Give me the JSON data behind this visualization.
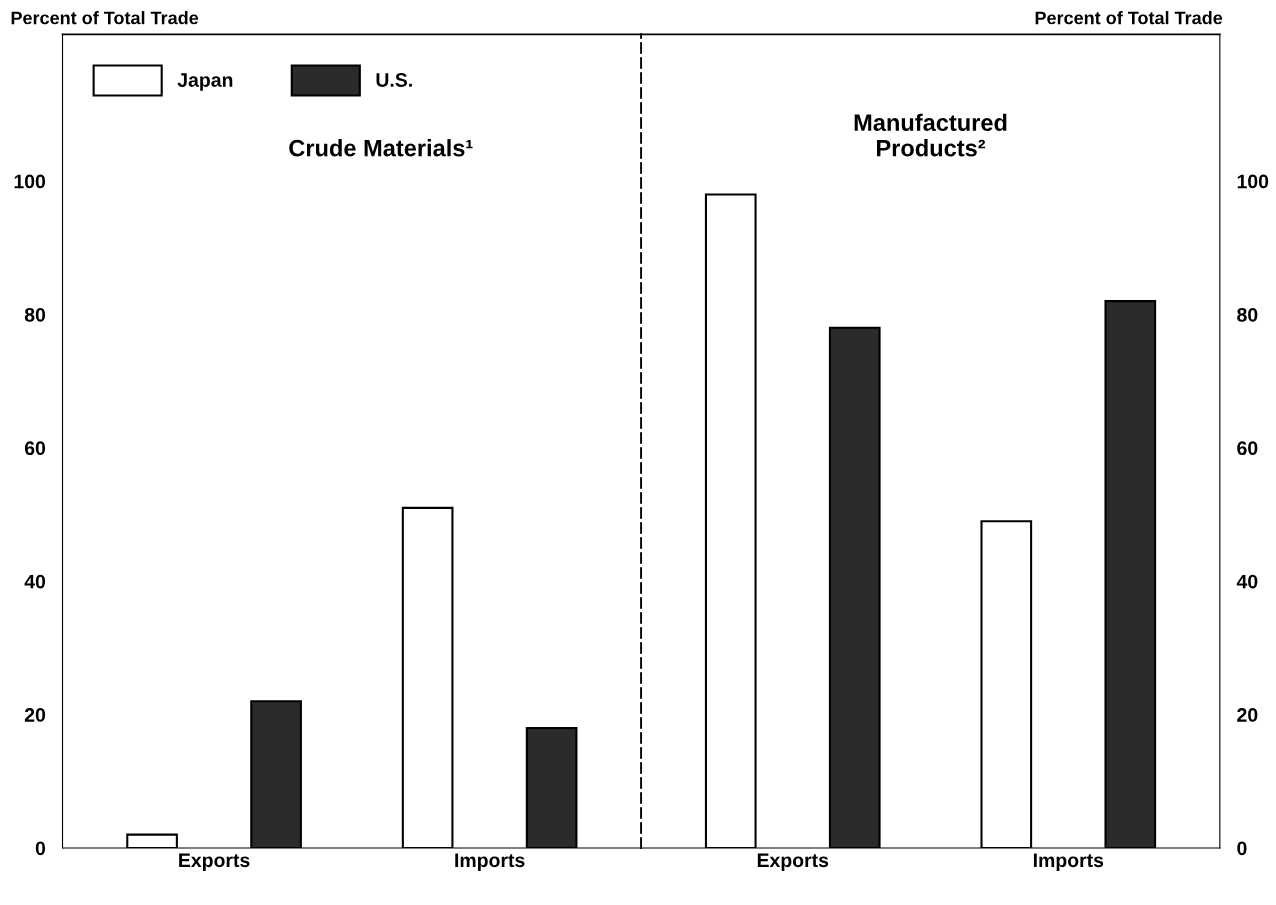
{
  "chart_data": [
    {
      "type": "bar",
      "title": "Crude Materials¹",
      "ylabel": "Percent of Total Trade",
      "categories": [
        "Exports",
        "Imports"
      ],
      "series": [
        {
          "name": "Japan",
          "color": "#ffffff",
          "values": [
            2,
            51
          ]
        },
        {
          "name": "U.S.",
          "color": "#2b2b2b",
          "values": [
            22,
            18
          ]
        }
      ],
      "ylim": [
        0,
        122
      ],
      "yticks": [
        0,
        20,
        40,
        60,
        80,
        100
      ],
      "legend": "top left",
      "grid": false
    },
    {
      "type": "bar",
      "title": "Manufactured\nProducts²",
      "ylabel": "Percent of Total Trade",
      "categories": [
        "Exports",
        "Imports"
      ],
      "series": [
        {
          "color": "#ffffff",
          "values": [
            98,
            49
          ]
        },
        {
          "color": "#2b2b2b",
          "values": [
            78,
            82
          ]
        }
      ],
      "ylim": [
        0,
        122
      ],
      "yticks": [
        0,
        20,
        40,
        60,
        80,
        100
      ],
      "grid": false
    }
  ]
}
